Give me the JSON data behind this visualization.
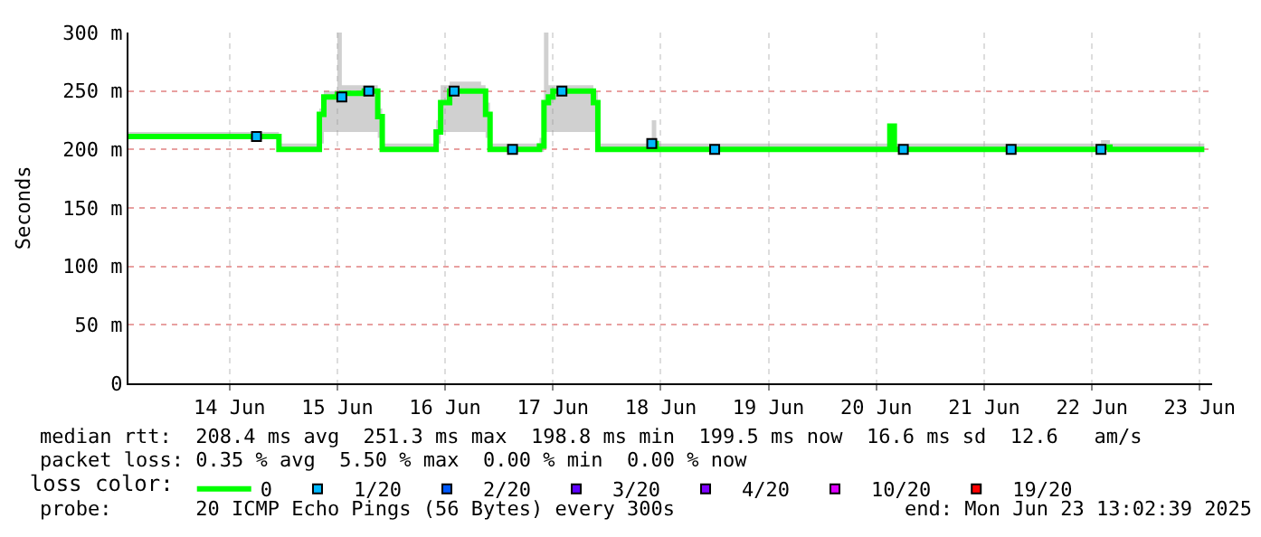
{
  "chart_data": {
    "type": "step",
    "ylabel": "Seconds",
    "legend_title": "loss color:",
    "legend": "bottom",
    "grid": true,
    "marker": "none",
    "xlim": [
      "2025-06-13T13:30",
      "2025-06-23T14:45"
    ],
    "xticks": [
      {
        "value": "2025-06-14T12:00",
        "label": "14 Jun"
      },
      {
        "value": "2025-06-15T12:00",
        "label": "15 Jun"
      },
      {
        "value": "2025-06-16T12:00",
        "label": "16 Jun"
      },
      {
        "value": "2025-06-17T12:00",
        "label": "17 Jun"
      },
      {
        "value": "2025-06-18T12:00",
        "label": "18 Jun"
      },
      {
        "value": "2025-06-19T12:00",
        "label": "19 Jun"
      },
      {
        "value": "2025-06-20T12:00",
        "label": "20 Jun"
      },
      {
        "value": "2025-06-21T12:00",
        "label": "21 Jun"
      },
      {
        "value": "2025-06-22T12:00",
        "label": "22 Jun"
      },
      {
        "value": "2025-06-23T12:00",
        "label": "23 Jun"
      }
    ],
    "ylim": [
      0,
      300
    ],
    "yticks": [
      0,
      {
        "value": 50,
        "label": "50 m"
      },
      {
        "value": 100,
        "label": "100 m"
      },
      {
        "value": 150,
        "label": "150 m"
      },
      {
        "value": 200,
        "label": "200 m"
      },
      {
        "value": 250,
        "label": "250 m"
      },
      {
        "value": 300,
        "label": "300 m"
      }
    ],
    "series": [
      {
        "name": "0",
        "color": "#00ff00",
        "x": [
          "2025-06-13T13:30",
          "2025-06-14T23:00",
          "2025-06-15T08:00",
          "2025-06-15T09:00",
          "2025-06-15T12:00",
          "2025-06-15T13:00",
          "2025-06-15T18:00",
          "2025-06-15T21:00",
          "2025-06-15T22:00",
          "2025-06-16T10:00",
          "2025-06-16T11:00",
          "2025-06-16T13:00",
          "2025-06-16T20:00",
          "2025-06-16T21:00",
          "2025-06-16T22:00",
          "2025-06-17T09:00",
          "2025-06-17T10:00",
          "2025-06-17T11:00",
          "2025-06-17T12:00",
          "2025-06-17T21:00",
          "2025-06-17T22:00",
          "2025-06-18T10:00",
          "2025-06-18T11:00",
          "2025-06-20T15:00",
          "2025-06-20T16:00",
          "2025-06-22T14:00",
          "2025-06-22T16:00",
          "2025-06-23T13:00"
        ],
        "values": [
          211,
          200,
          230,
          245,
          247,
          248,
          250,
          228,
          200,
          215,
          240,
          250,
          250,
          230,
          200,
          203,
          240,
          245,
          250,
          240,
          200,
          205,
          200,
          220,
          200,
          202,
          200,
          200
        ],
        "lower": [
          209,
          198,
          205,
          215,
          215,
          215,
          215,
          210,
          198,
          205,
          215,
          215,
          215,
          210,
          198,
          198,
          215,
          215,
          215,
          215,
          198,
          198,
          198,
          218,
          198,
          198,
          198,
          198
        ],
        "upper": [
          215,
          205,
          235,
          250,
          300,
          255,
          255,
          235,
          205,
          225,
          255,
          258,
          255,
          240,
          205,
          210,
          300,
          255,
          255,
          250,
          205,
          225,
          205,
          222,
          205,
          208,
          205,
          205
        ]
      },
      {
        "name": "1/20",
        "color": "#00b8ff",
        "type": "scatter",
        "marker": "square",
        "x": [
          "2025-06-14T18:00",
          "2025-06-15T13:00",
          "2025-06-15T19:00",
          "2025-06-16T14:00",
          "2025-06-17T03:00",
          "2025-06-17T14:00",
          "2025-06-18T10:00",
          "2025-06-19T00:00",
          "2025-06-20T18:00",
          "2025-06-21T18:00",
          "2025-06-22T14:00"
        ],
        "values": [
          211,
          245,
          250,
          250,
          200,
          250,
          205,
          200,
          200,
          200,
          200
        ]
      },
      {
        "name": "2/20",
        "color": "#0059ff",
        "type": "scatter",
        "marker": "square"
      },
      {
        "name": "3/20",
        "color": "#5e00ff",
        "type": "scatter",
        "marker": "square"
      },
      {
        "name": "4/20",
        "color": "#7e00ff",
        "type": "scatter",
        "marker": "square"
      },
      {
        "name": "10/20",
        "color": "#dd00ff",
        "type": "scatter",
        "marker": "square"
      },
      {
        "name": "19/20",
        "color": "#ff0000",
        "type": "scatter",
        "marker": "square"
      }
    ],
    "annotations": [
      "median rtt:  208.4 ms avg  251.3 ms max  198.8 ms min  199.5 ms now  16.6 ms sd  12.6   am/s",
      "packet loss: 0.35 % avg  5.50 % max  0.00 % min  0.00 % now",
      "probe:       20 ICMP Echo Pings (56 Bytes) every 300s",
      "end: Mon Jun 23 13:02:39 2025"
    ]
  }
}
